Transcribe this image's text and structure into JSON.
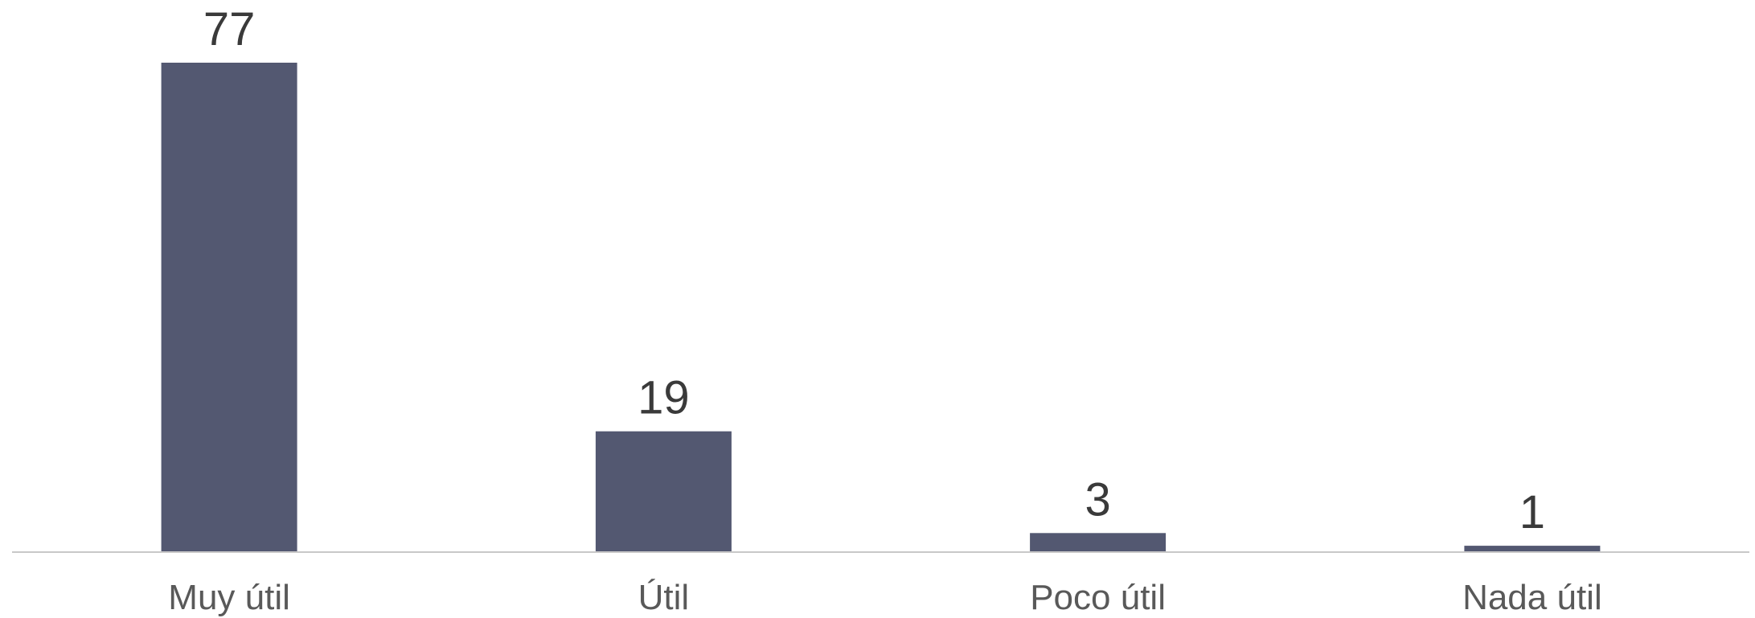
{
  "chart_data": {
    "type": "bar",
    "categories": [
      "Muy útil",
      "Útil",
      "Poco útil",
      "Nada útil"
    ],
    "values": [
      77,
      19,
      3,
      1
    ],
    "data_labels": [
      "77",
      "19",
      "3",
      "1"
    ],
    "title": "",
    "xlabel": "",
    "ylabel": "",
    "ylim": [
      0,
      77
    ],
    "grid": false,
    "legend": "none",
    "colors": {
      "bar": "#535871",
      "axis": "#c8c8c8",
      "value_text": "#3a3a3a",
      "category_text": "#595959"
    }
  }
}
